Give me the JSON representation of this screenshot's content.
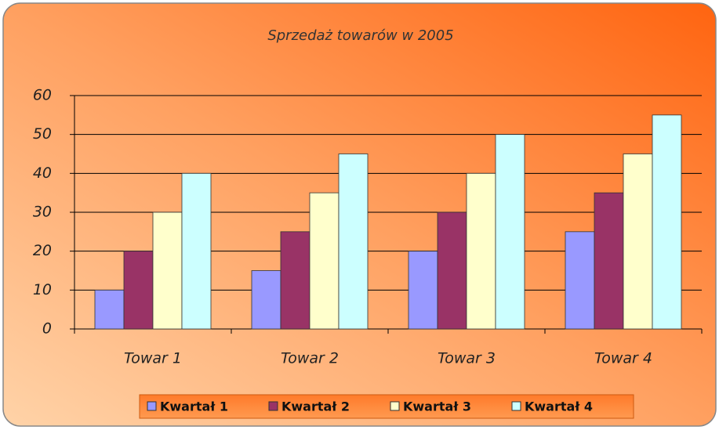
{
  "chart_data": {
    "type": "bar",
    "title": "Sprzedaż towarów w 2005",
    "categories": [
      "Towar 1",
      "Towar 2",
      "Towar 3",
      "Towar 4"
    ],
    "series": [
      {
        "name": "Kwartał 1",
        "color": "#9999ff",
        "values": [
          10,
          15,
          20,
          25
        ]
      },
      {
        "name": "Kwartał 2",
        "color": "#993366",
        "values": [
          20,
          25,
          30,
          35
        ]
      },
      {
        "name": "Kwartał 3",
        "color": "#ffffcc",
        "values": [
          30,
          35,
          40,
          45
        ]
      },
      {
        "name": "Kwartał 4",
        "color": "#ccffff",
        "values": [
          40,
          45,
          50,
          55
        ]
      }
    ],
    "ylim": [
      0,
      60
    ],
    "yticks": [
      0,
      10,
      20,
      30,
      40,
      50,
      60
    ],
    "grid": true,
    "legend": "bottom"
  }
}
